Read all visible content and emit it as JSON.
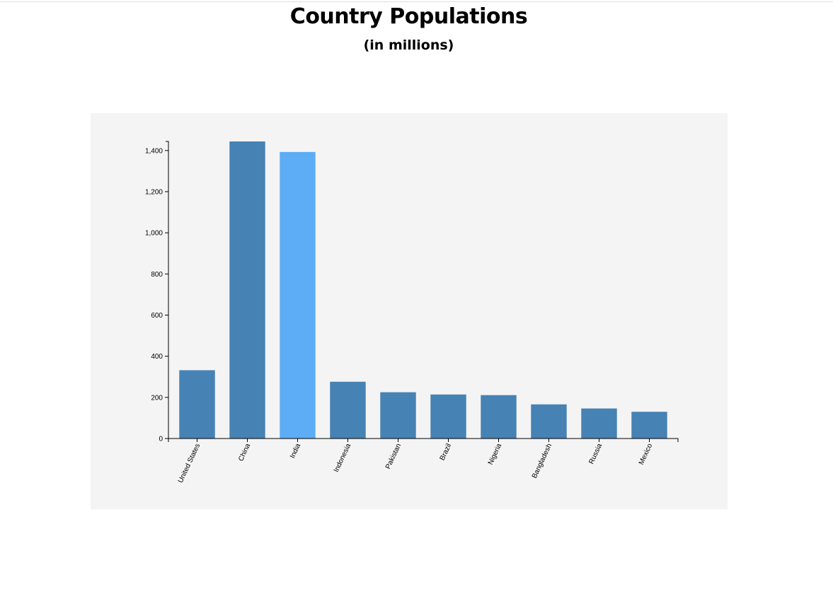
{
  "header": {
    "title": "Country Populations",
    "subtitle": "(in millions)"
  },
  "chart_data": {
    "type": "bar",
    "title": "Country Populations",
    "subtitle": "(in millions)",
    "xlabel": "",
    "ylabel": "",
    "categories": [
      "United States",
      "China",
      "India",
      "Indonesia",
      "Pakistan",
      "Brazil",
      "Nigeria",
      "Bangladesh",
      "Russia",
      "Mexico"
    ],
    "values": [
      332,
      1444,
      1393,
      276,
      225,
      214,
      211,
      166,
      146,
      130
    ],
    "ylim": [
      0,
      1444
    ],
    "yticks": [
      0,
      200,
      400,
      600,
      800,
      1000,
      1200,
      1400
    ],
    "ytick_labels": [
      "0",
      "200",
      "400",
      "600",
      "800",
      "1,000",
      "1,200",
      "1,400"
    ],
    "highlighted_category": "India",
    "colors": {
      "bar": "#4682b4",
      "highlight": "#5dadf6",
      "panel_background": "#f4f4f4"
    },
    "grid": false,
    "legend": "none"
  }
}
